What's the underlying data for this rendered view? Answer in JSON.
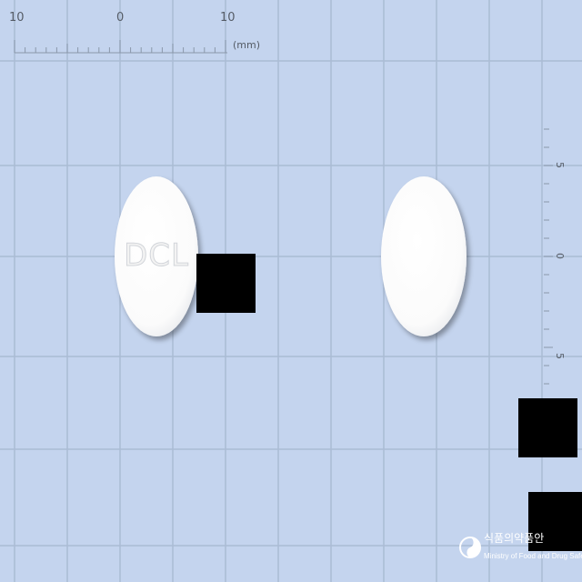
{
  "background_color": "#c4d4ee",
  "grid_color": "#aabbd4",
  "ruler": {
    "top_labels": [
      "10",
      "0",
      "10"
    ],
    "unit_label": "(mm)",
    "side_labels": [
      "5",
      "0",
      "5"
    ]
  },
  "tablets": [
    {
      "view": "front",
      "imprint": "DCL",
      "color": "#ffffff",
      "shape": "oval"
    },
    {
      "view": "back",
      "imprint": "",
      "color": "#ffffff",
      "shape": "oval"
    }
  ],
  "watermark": {
    "korean_text": "식품의약품안",
    "english_text": "Ministry of Food and Drug Safety",
    "icon": "mfds-logo-icon"
  }
}
